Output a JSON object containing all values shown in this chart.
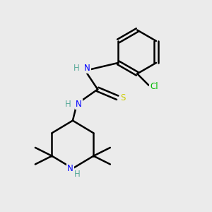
{
  "bg_color": "#ebebeb",
  "atom_colors": {
    "C": "#000000",
    "N": "#0000ff",
    "S": "#cccc00",
    "Cl": "#00bb00",
    "H_color": "#5aaa9a"
  },
  "bond_color": "#000000",
  "bond_width": 1.8,
  "figsize": [
    3.0,
    3.0
  ],
  "dpi": 100,
  "xlim": [
    0,
    10
  ],
  "ylim": [
    0,
    10
  ]
}
